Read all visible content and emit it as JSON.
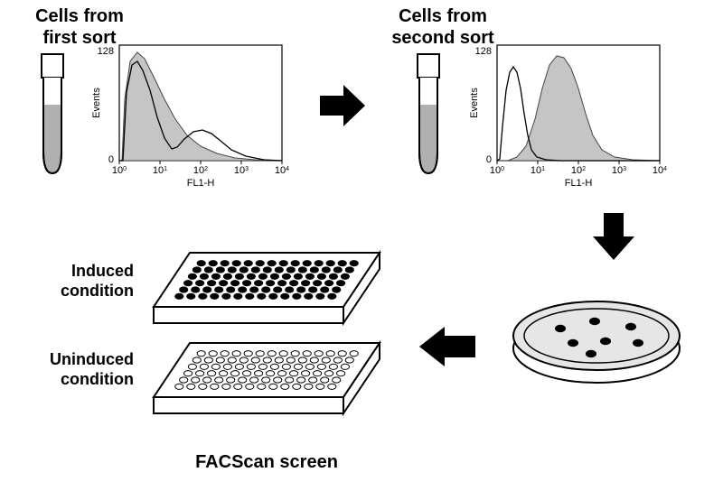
{
  "titles": {
    "first_sort": "Cells from\nfirst sort",
    "second_sort": "Cells from\nsecond sort",
    "induced": "Induced\ncondition",
    "uninduced": "Uninduced\ncondition",
    "facscan": "FACScan screen"
  },
  "title_fontsize": 20,
  "side_label_fontsize": 18,
  "footer_fontsize": 20,
  "chart": {
    "type": "histogram",
    "xlabel": "FL1-H",
    "ylabel": "Events",
    "ylim": [
      0,
      128
    ],
    "ytick_labels": [
      "0",
      "128"
    ],
    "xtick_labels": [
      "10^0",
      "10^1",
      "10^2",
      "10^3",
      "10^4"
    ],
    "xscale": "log",
    "series1_outline_color": "#000000",
    "series1_fill_color": "none",
    "series2_outline_color": "#444444",
    "series2_fill_color": "#c5c5c5",
    "line_width": 1.3,
    "background_color": "#ffffff",
    "chart1": {
      "filled_peak_center_decade": 0.5,
      "unfilled_peak_center_decade": 0.45,
      "unfilled_shoulder_decade": 1.6
    },
    "chart2": {
      "filled_peak_center_decade": 1.3,
      "unfilled_peak_center_decade": 0.3
    }
  },
  "tube": {
    "body_fill": "#b0b0b0",
    "outline": "#000000",
    "outline_width": 2
  },
  "arrow": {
    "fill": "#000000"
  },
  "dish": {
    "fill": "#e6e6e6",
    "outline": "#000000",
    "dot_fill": "#000000",
    "dot_count": 7
  },
  "plate": {
    "outline": "#000000",
    "outline_width": 2,
    "rows": 6,
    "cols": 14,
    "induced_well_fill": "#000000",
    "uninduced_well_fill": "#ffffff"
  }
}
